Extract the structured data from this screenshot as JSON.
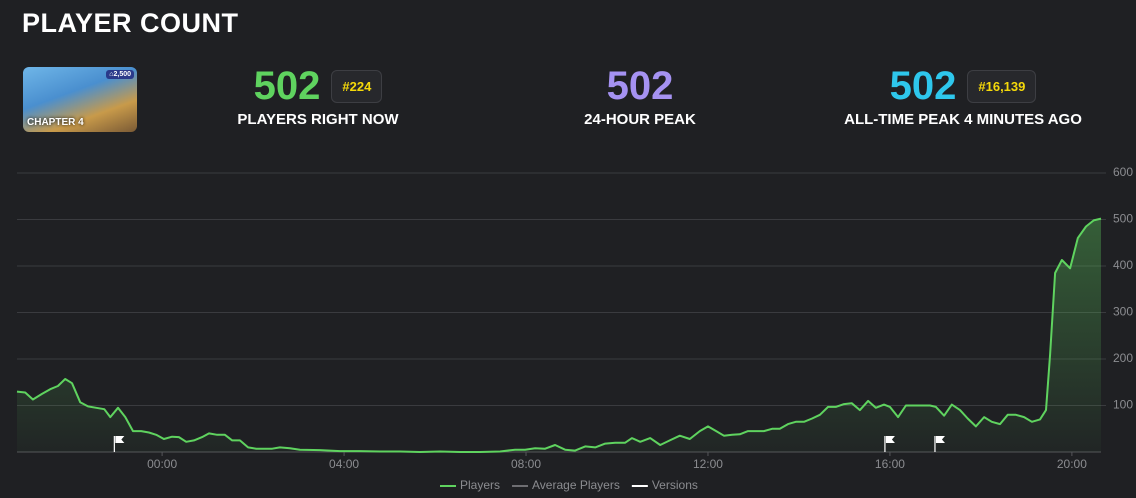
{
  "header": {
    "title": "PLAYER COUNT"
  },
  "thumbnail": {
    "label": "CHAPTER 4",
    "badge": "⌂2,500"
  },
  "stats": [
    {
      "value": 502,
      "rank": "#224",
      "label": "PLAYERS RIGHT NOW",
      "color": "#5fd35f"
    },
    {
      "value": 502,
      "label": "24-HOUR PEAK",
      "color": "#a592f2"
    },
    {
      "value": 502,
      "rank": "#16,139",
      "label": "ALL-TIME PEAK 4 MINUTES AGO",
      "color": "#2ec7ec"
    }
  ],
  "chart_data": {
    "type": "line",
    "x": [
      -3.19,
      -3.01,
      -2.84,
      -2.64,
      -2.46,
      -2.29,
      -2.13,
      -1.98,
      -1.8,
      -1.63,
      -1.45,
      -1.27,
      -1.14,
      -0.97,
      -0.81,
      -0.64,
      -0.46,
      -0.29,
      -0.13,
      0.04,
      0.22,
      0.37,
      0.53,
      0.7,
      0.88,
      1.03,
      1.21,
      1.38,
      1.54,
      1.71,
      1.89,
      2.07,
      2.24,
      2.42,
      2.59,
      2.81,
      3.03,
      3.47,
      3.91,
      4.35,
      4.79,
      5.23,
      5.67,
      6.11,
      6.55,
      6.99,
      7.43,
      7.76,
      7.98,
      8.2,
      8.42,
      8.64,
      8.86,
      9.08,
      9.3,
      9.52,
      9.74,
      9.96,
      10.18,
      10.33,
      10.51,
      10.73,
      10.95,
      11.16,
      11.38,
      11.6,
      11.82,
      12.0,
      12.18,
      12.35,
      12.53,
      12.7,
      12.88,
      13.05,
      13.23,
      13.41,
      13.58,
      13.76,
      13.93,
      14.11,
      14.29,
      14.46,
      14.64,
      14.81,
      14.99,
      15.16,
      15.34,
      15.52,
      15.69,
      15.87,
      16.0,
      16.18,
      16.35,
      16.53,
      16.7,
      16.88,
      17.01,
      17.19,
      17.36,
      17.54,
      17.71,
      17.89,
      18.07,
      18.24,
      18.42,
      18.59,
      18.77,
      18.95,
      19.12,
      19.3,
      19.43,
      19.52,
      19.63,
      19.78,
      19.96,
      20.13,
      20.31,
      20.48,
      20.64
    ],
    "series": [
      {
        "name": "Players",
        "color": "#5fd35f",
        "values": [
          130,
          128,
          113,
          125,
          135,
          142,
          157,
          148,
          107,
          98,
          95,
          92,
          75,
          95,
          75,
          45,
          45,
          42,
          37,
          28,
          33,
          32,
          22,
          25,
          32,
          40,
          37,
          37,
          25,
          25,
          10,
          7,
          7,
          7,
          10,
          8,
          5,
          4,
          2,
          2,
          1,
          1,
          0,
          1,
          0,
          0,
          1,
          5,
          5,
          8,
          7,
          15,
          5,
          3,
          12,
          10,
          18,
          20,
          20,
          30,
          22,
          30,
          15,
          25,
          35,
          28,
          45,
          55,
          45,
          35,
          37,
          38,
          45,
          45,
          45,
          50,
          50,
          60,
          65,
          65,
          72,
          80,
          97,
          97,
          103,
          105,
          90,
          110,
          95,
          102,
          97,
          75,
          100,
          100,
          100,
          100,
          97,
          78,
          102,
          90,
          72,
          55,
          75,
          65,
          60,
          80,
          80,
          75,
          65,
          70,
          90,
          210,
          385,
          413,
          395,
          460,
          485,
          498,
          502
        ]
      }
    ],
    "other_legend_entries": [
      {
        "name": "Average Players",
        "color": "#6e6e72"
      },
      {
        "name": "Versions",
        "color": "#ffffff"
      }
    ],
    "versions": [
      -1.05,
      15.89,
      16.99
    ],
    "xlim": [
      -3.19,
      20.64
    ],
    "xticks": [
      {
        "value": 0,
        "label": "00:00"
      },
      {
        "value": 4,
        "label": "04:00"
      },
      {
        "value": 8,
        "label": "08:00"
      },
      {
        "value": 12,
        "label": "12:00"
      },
      {
        "value": 16,
        "label": "16:00"
      },
      {
        "value": 20,
        "label": "20:00"
      }
    ],
    "ylim": [
      0,
      600
    ],
    "yticks": [
      100,
      200,
      300,
      400,
      500,
      600
    ],
    "grid": true
  }
}
